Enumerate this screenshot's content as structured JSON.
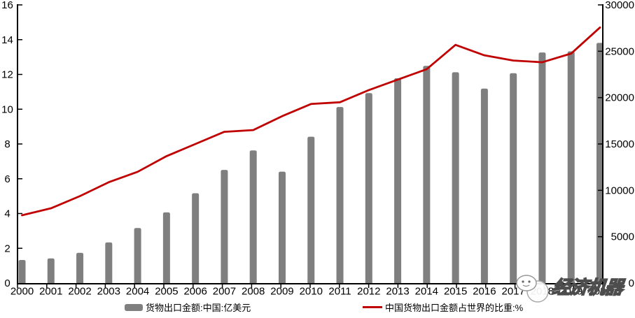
{
  "chart_data": {
    "type": "combo",
    "title": "",
    "categories": [
      "2000",
      "2001",
      "2002",
      "2003",
      "2004",
      "2005",
      "2006",
      "2007",
      "2008",
      "2009",
      "2010",
      "2011",
      "2012",
      "2013",
      "2014",
      "2015",
      "2016",
      "2017",
      "2018",
      "2019",
      "2020"
    ],
    "series": [
      {
        "name": "货物出口金额:中国:亿美元",
        "type": "bar",
        "axis": "right",
        "color": "#7f7f7f",
        "values": [
          2492,
          2661,
          3256,
          4382,
          5933,
          7620,
          9689,
          12201,
          14307,
          12016,
          15778,
          18984,
          20487,
          22090,
          23423,
          22735,
          20976,
          22633,
          24867,
          24990,
          25900
        ]
      },
      {
        "name": "中国货物出口金额占世界的比重:%",
        "type": "line",
        "axis": "left",
        "color": "#c00000",
        "values": [
          3.9,
          4.3,
          5.0,
          5.8,
          6.4,
          7.3,
          8.0,
          8.7,
          8.8,
          9.6,
          10.3,
          10.4,
          11.1,
          11.7,
          12.3,
          13.7,
          13.1,
          12.8,
          12.7,
          13.2,
          14.7
        ]
      }
    ],
    "left_axis": {
      "min": 0,
      "max": 16,
      "step": 2,
      "tick_labels": [
        "0",
        "2",
        "4",
        "6",
        "8",
        "10",
        "12",
        "14",
        "16"
      ]
    },
    "right_axis": {
      "min": 0,
      "max": 30000,
      "step": 5000,
      "tick_labels": [
        "0",
        "5000",
        "10000",
        "15000",
        "20000",
        "25000",
        "30000"
      ]
    },
    "grid": false,
    "legend_position": "bottom"
  },
  "watermark": {
    "text": "经济机器"
  },
  "colors": {
    "bar": "#7f7f7f",
    "line": "#c00000",
    "axis": "#000000",
    "background": "#ffffff",
    "watermark_stroke": "#4d4d4d"
  }
}
